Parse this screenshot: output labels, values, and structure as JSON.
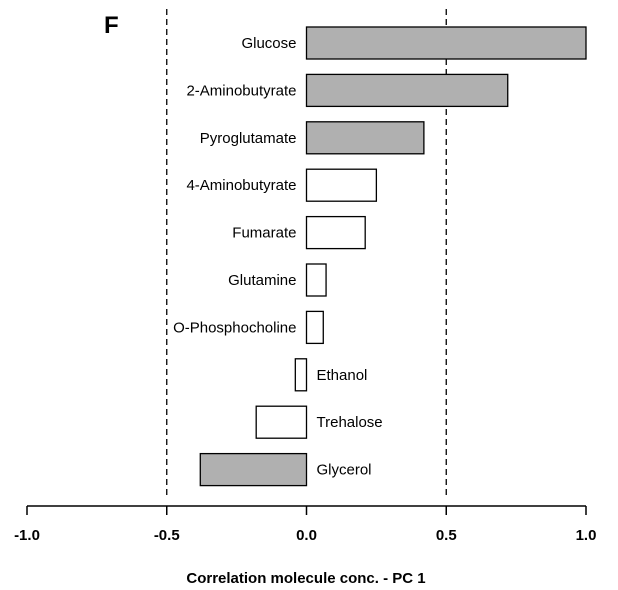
{
  "chart_data": {
    "type": "bar",
    "orientation": "horizontal",
    "panel_label": "F",
    "title": "",
    "xlabel": "Correlation molecule conc. - PC 1",
    "ylabel": "",
    "xlim": [
      -1.0,
      1.0
    ],
    "xticks": [
      -1.0,
      -0.5,
      0.0,
      0.5,
      1.0
    ],
    "xtick_labels": [
      "-1.0",
      "-0.5",
      "0.0",
      "0.5",
      "1.0"
    ],
    "threshold_lines": [
      -0.5,
      0.5
    ],
    "grid": false,
    "legend": "none",
    "colors": {
      "significant": "#b0b0b0",
      "non_significant": "#ffffff",
      "outline": "#000000"
    },
    "categories": [
      "Glucose",
      "2-Aminobutyrate",
      "Pyroglutamate",
      "4-Aminobutyrate",
      "Fumarate",
      "Glutamine",
      "O-Phosphocholine",
      "Ethanol",
      "Trehalose",
      "Glycerol"
    ],
    "values": [
      1.0,
      0.72,
      0.42,
      0.25,
      0.21,
      0.07,
      0.06,
      -0.04,
      -0.18,
      -0.38
    ],
    "significant": [
      true,
      true,
      true,
      false,
      false,
      false,
      false,
      false,
      false,
      true
    ]
  }
}
